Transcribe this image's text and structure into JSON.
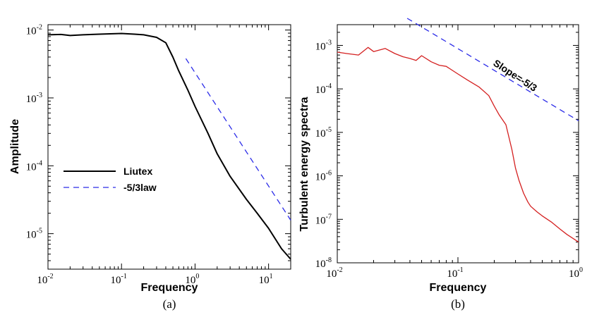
{
  "chart_data": [
    {
      "type": "line",
      "panel": "(a)",
      "xlabel": "Frequency",
      "ylabel": "Amplitude",
      "xscale": "log",
      "yscale": "log",
      "xlim": [
        0.01,
        20
      ],
      "ylim": [
        3e-06,
        0.012
      ],
      "x_ticks": [
        {
          "base": "10",
          "exp": "-2"
        },
        {
          "base": "10",
          "exp": "-1"
        },
        {
          "base": "10",
          "exp": "0"
        },
        {
          "base": "10",
          "exp": "1"
        }
      ],
      "y_ticks": [
        {
          "base": "10",
          "exp": "-5"
        },
        {
          "base": "10",
          "exp": "-4"
        },
        {
          "base": "10",
          "exp": "-3"
        },
        {
          "base": "10",
          "exp": "-2"
        }
      ],
      "legend_position": "center-left",
      "series": [
        {
          "name": "Liutex",
          "style": "solid",
          "color": "#000000",
          "x": [
            0.01,
            0.015,
            0.02,
            0.03,
            0.05,
            0.07,
            0.1,
            0.15,
            0.2,
            0.3,
            0.4,
            0.5,
            0.6,
            0.8,
            1.0,
            1.5,
            2.0,
            3.0,
            5.0,
            7.0,
            10.0,
            15.0,
            20.0
          ],
          "y": [
            0.0085,
            0.0086,
            0.0083,
            0.0085,
            0.0087,
            0.0088,
            0.0089,
            0.0087,
            0.0085,
            0.0078,
            0.0065,
            0.004,
            0.0025,
            0.0013,
            0.00075,
            0.0003,
            0.00015,
            7e-05,
            3.2e-05,
            2e-05,
            1.2e-05,
            6e-06,
            4.2e-06
          ]
        },
        {
          "name": "-5/3law",
          "style": "dashed",
          "color": "#2b2be8",
          "x": [
            0.75,
            20.0
          ],
          "y": [
            0.0038,
            1.58e-05
          ]
        }
      ]
    },
    {
      "type": "line",
      "panel": "(b)",
      "xlabel": "Frequency",
      "ylabel": "Turbulent energy spectra",
      "xscale": "log",
      "yscale": "log",
      "xlim": [
        0.01,
        1
      ],
      "ylim": [
        1e-08,
        0.003
      ],
      "x_ticks": [
        {
          "base": "10",
          "exp": "-2"
        },
        {
          "base": "10",
          "exp": "-1"
        },
        {
          "base": "10",
          "exp": "0"
        }
      ],
      "y_ticks": [
        {
          "base": "10",
          "exp": "-8"
        },
        {
          "base": "10",
          "exp": "-7"
        },
        {
          "base": "10",
          "exp": "-6"
        },
        {
          "base": "10",
          "exp": "-5"
        },
        {
          "base": "10",
          "exp": "-4"
        },
        {
          "base": "10",
          "exp": "-3"
        }
      ],
      "annotations": [
        "Slope=-5/3"
      ],
      "series": [
        {
          "name": "",
          "style": "solid",
          "color": "#d42020",
          "x": [
            0.01,
            0.012,
            0.015,
            0.018,
            0.02,
            0.025,
            0.03,
            0.035,
            0.04,
            0.045,
            0.05,
            0.06,
            0.07,
            0.08,
            0.1,
            0.12,
            0.15,
            0.18,
            0.2,
            0.22,
            0.25,
            0.28,
            0.3,
            0.32,
            0.35,
            0.38,
            0.4,
            0.45,
            0.5,
            0.6,
            0.7,
            0.8,
            1.0
          ],
          "y": [
            0.0007,
            0.00065,
            0.0006,
            0.0009,
            0.00072,
            0.00085,
            0.00065,
            0.00055,
            0.0005,
            0.00045,
            0.00058,
            0.00042,
            0.00035,
            0.00033,
            0.00022,
            0.00016,
            0.00011,
            7e-05,
            4e-05,
            2.5e-05,
            1.5e-05,
            4e-06,
            1.5e-06,
            8e-07,
            4e-07,
            2.5e-07,
            2e-07,
            1.5e-07,
            1.2e-07,
            8.5e-08,
            6e-08,
            4.5e-08,
            3e-08
          ]
        },
        {
          "name": "",
          "style": "dashed",
          "color": "#2b2be8",
          "x": [
            0.038,
            1.0
          ],
          "y": [
            0.0042,
            1.85e-05
          ]
        }
      ]
    }
  ],
  "captions": [
    "(a)",
    "(b)"
  ]
}
